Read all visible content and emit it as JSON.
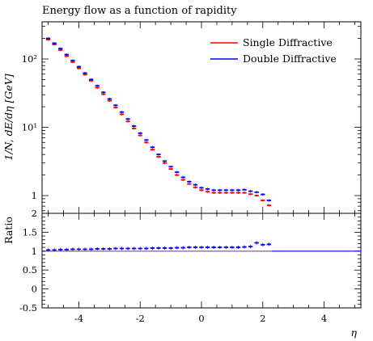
{
  "chart_data": [
    {
      "type": "line",
      "title": "Energy flow as a function of rapidity",
      "xlabel": "η",
      "ylabel": "1/N, dE/dη [GeV]",
      "yscale": "log",
      "xlim": [
        -5.2,
        5.2
      ],
      "ylim": [
        0.55,
        350
      ],
      "y_ticks": [
        {
          "value": 1,
          "label": "1"
        },
        {
          "value": 10,
          "label": "10¹"
        },
        {
          "value": 100,
          "label": "10²"
        }
      ],
      "legend_position": "top-right",
      "x": [
        -5.0,
        -4.8,
        -4.6,
        -4.4,
        -4.2,
        -4.0,
        -3.8,
        -3.6,
        -3.4,
        -3.2,
        -3.0,
        -2.8,
        -2.6,
        -2.4,
        -2.2,
        -2.0,
        -1.8,
        -1.6,
        -1.4,
        -1.2,
        -1.0,
        -0.8,
        -0.6,
        -0.4,
        -0.2,
        0.0,
        0.2,
        0.4,
        0.6,
        0.8,
        1.0,
        1.2,
        1.4,
        1.6,
        1.8,
        2.0,
        2.2
      ],
      "series": [
        {
          "name": "Single Diffractive",
          "color": "#ff0000",
          "values": [
            192,
            163,
            135,
            110,
            90,
            73,
            59,
            48,
            38,
            30.5,
            24.5,
            19.5,
            15.5,
            12.2,
            9.6,
            7.6,
            6.0,
            4.7,
            3.7,
            3.0,
            2.45,
            2.0,
            1.7,
            1.48,
            1.32,
            1.2,
            1.14,
            1.1,
            1.1,
            1.1,
            1.1,
            1.1,
            1.1,
            1.05,
            1.0,
            0.85,
            0.72
          ]
        },
        {
          "name": "Double Diffractive",
          "color": "#0000ff",
          "values": [
            200,
            170,
            142,
            116,
            95,
            77,
            62,
            50,
            40.5,
            32.5,
            26,
            21,
            16.7,
            13.2,
            10.4,
            8.2,
            6.5,
            5.1,
            4.0,
            3.2,
            2.65,
            2.2,
            1.85,
            1.6,
            1.44,
            1.3,
            1.25,
            1.2,
            1.2,
            1.2,
            1.2,
            1.2,
            1.22,
            1.16,
            1.12,
            1.04,
            0.85
          ]
        }
      ]
    },
    {
      "type": "line",
      "title": "",
      "xlabel": "η",
      "ylabel": "Ratio",
      "xlim": [
        -5.2,
        5.2
      ],
      "ylim": [
        -0.5,
        2.0
      ],
      "y_ticks": [
        {
          "value": -0.5,
          "label": "-0.5"
        },
        {
          "value": 0,
          "label": "0"
        },
        {
          "value": 0.5,
          "label": "0.5"
        },
        {
          "value": 1,
          "label": "1"
        },
        {
          "value": 1.5,
          "label": "1.5"
        },
        {
          "value": 2,
          "label": "2"
        }
      ],
      "x_ticks": [
        {
          "value": -4,
          "label": "-4"
        },
        {
          "value": -2,
          "label": "-2"
        },
        {
          "value": 0,
          "label": "0"
        },
        {
          "value": 2,
          "label": "2"
        },
        {
          "value": 4,
          "label": "4"
        }
      ],
      "reference_value": 1.0,
      "series": [
        {
          "name": "Single Diffractive",
          "color": "#ff0000",
          "values": [
            1.0,
            1.0,
            1.0,
            1.0,
            1.0,
            1.0,
            1.0,
            1.0,
            1.0,
            1.0,
            1.0,
            1.0,
            1.0,
            1.0,
            1.0,
            1.0,
            1.0,
            1.0,
            1.0,
            1.0,
            1.0,
            1.0,
            1.0,
            1.0,
            1.0,
            1.0,
            1.0,
            1.0,
            1.0,
            1.0,
            1.0,
            1.0,
            1.0,
            1.0,
            1.0,
            1.0,
            1.0
          ]
        },
        {
          "name": "Double Diffractive",
          "color": "#0000ff",
          "values": [
            1.03,
            1.03,
            1.04,
            1.04,
            1.05,
            1.05,
            1.05,
            1.05,
            1.06,
            1.06,
            1.06,
            1.07,
            1.07,
            1.07,
            1.07,
            1.07,
            1.07,
            1.08,
            1.08,
            1.08,
            1.08,
            1.09,
            1.09,
            1.1,
            1.1,
            1.1,
            1.1,
            1.1,
            1.1,
            1.1,
            1.1,
            1.1,
            1.11,
            1.12,
            1.22,
            1.17,
            1.18
          ]
        }
      ]
    }
  ]
}
